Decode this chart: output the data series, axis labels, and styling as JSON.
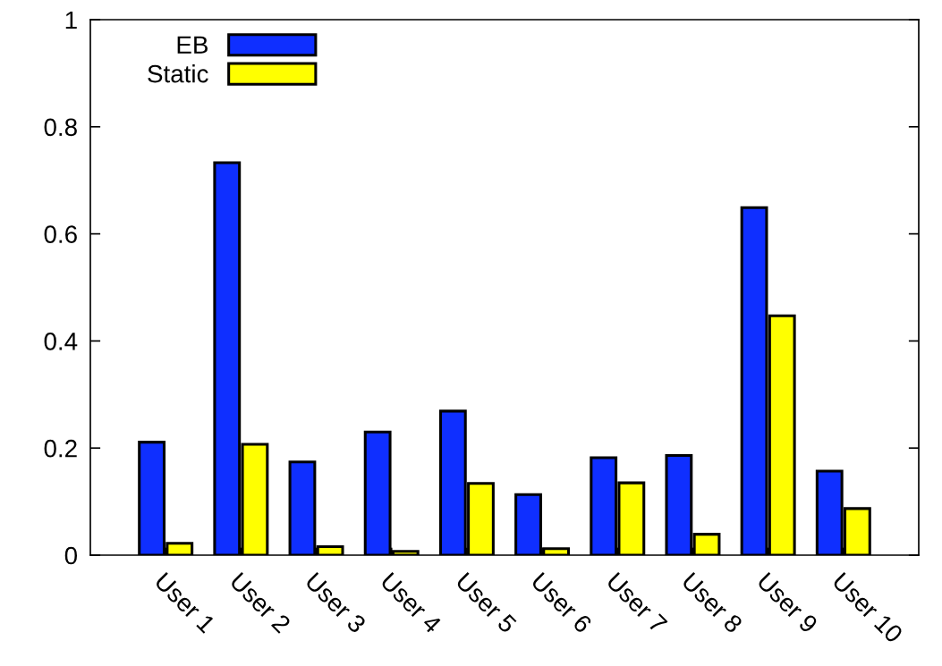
{
  "chart_data": {
    "type": "bar",
    "categories": [
      "User 1",
      "User 2",
      "User 3",
      "User 4",
      "User 5",
      "User 6",
      "User 7",
      "User 8",
      "User 9",
      "User 10"
    ],
    "series": [
      {
        "name": "EB",
        "color": "#0f2fff",
        "values": [
          0.211,
          0.733,
          0.174,
          0.23,
          0.269,
          0.113,
          0.182,
          0.186,
          0.649,
          0.157
        ]
      },
      {
        "name": "Static",
        "color": "#ffff00",
        "values": [
          0.022,
          0.207,
          0.016,
          0.007,
          0.134,
          0.012,
          0.135,
          0.039,
          0.447,
          0.087
        ]
      }
    ],
    "ylim": [
      0,
      1
    ],
    "yticks": [
      0,
      0.2,
      0.4,
      0.6,
      0.8,
      1
    ],
    "grid": false,
    "legend": "top left"
  }
}
